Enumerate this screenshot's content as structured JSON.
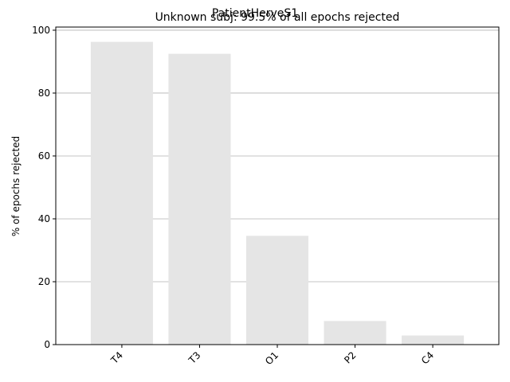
{
  "figure": {
    "suptitle": "PatientHerveS1",
    "title": "Unknown subj: 99.5% of all epochs rejected"
  },
  "chart_data": {
    "type": "bar",
    "categories": [
      "T4",
      "T3",
      "O1",
      "P2",
      "C4"
    ],
    "values": [
      96.3,
      92.5,
      34.6,
      7.5,
      2.9
    ],
    "title": "Unknown subj: 99.5% of all epochs rejected",
    "xlabel": "",
    "ylabel": "% of epochs rejected",
    "ylim": [
      0,
      101
    ],
    "yticks": [
      0,
      20,
      40,
      60,
      80,
      100
    ],
    "grid": "y",
    "bar_color": "#e5e5e5",
    "grid_color": "#b0b0b0"
  }
}
